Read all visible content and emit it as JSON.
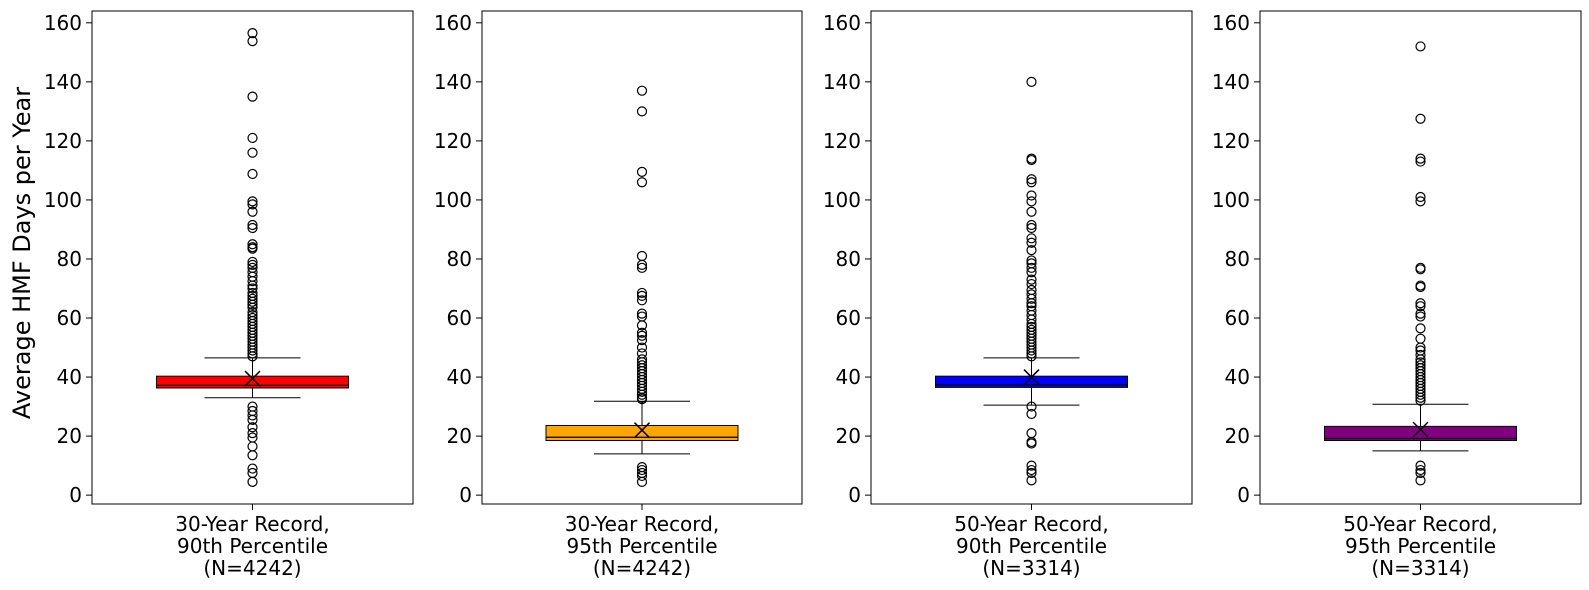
{
  "chart_data": {
    "type": "box",
    "ylabel": "Average HMF Days per Year",
    "ylim": [
      -3,
      164
    ],
    "yticks": [
      0,
      20,
      40,
      60,
      80,
      100,
      120,
      140,
      160
    ],
    "grid": false,
    "panels": [
      {
        "label_lines": [
          "30-Year Record,",
          "90th Percentile",
          "(N=4242)"
        ],
        "color": "#ff0000",
        "q1": 36.3,
        "median": 37.2,
        "q3": 40.3,
        "whisker_low": 33.0,
        "whisker_high": 46.5,
        "mean": 39.5,
        "outliers": [
          156.5,
          153.8,
          135.0,
          121.0,
          116.0,
          108.8,
          99.5,
          98.5,
          96.0,
          91.5,
          90.5,
          85.0,
          84.0,
          83.5,
          79.0,
          78.0,
          77.0,
          75.5,
          74.0,
          72.5,
          71.0,
          70.0,
          68.5,
          67.5,
          66.5,
          65.5,
          64.5,
          63.5,
          62.0,
          61.0,
          60.0,
          59.0,
          58.0,
          57.0,
          56.0,
          55.0,
          54.0,
          53.0,
          52.0,
          51.0,
          50.0,
          49.0,
          48.0,
          47.0,
          30.0,
          28.5,
          27.0,
          25.5,
          23.0,
          21.0,
          19.5,
          16.5,
          13.5,
          9.0,
          7.5,
          4.5
        ]
      },
      {
        "label_lines": [
          "30-Year Record,",
          "95th Percentile",
          "(N=4242)"
        ],
        "color": "#ffa500",
        "q1": 18.5,
        "median": 19.6,
        "q3": 23.6,
        "whisker_low": 14.0,
        "whisker_high": 31.8,
        "mean": 22.0,
        "outliers": [
          137.0,
          130.0,
          109.5,
          106.0,
          81.0,
          78.0,
          77.0,
          68.5,
          67.5,
          66.0,
          61.5,
          60.5,
          57.5,
          55.0,
          54.0,
          52.5,
          50.0,
          48.0,
          46.0,
          45.0,
          44.0,
          43.0,
          42.0,
          41.0,
          40.0,
          39.0,
          38.0,
          37.0,
          36.0,
          35.0,
          34.0,
          33.0,
          32.5,
          9.5,
          8.5,
          7.5,
          6.5,
          4.5
        ]
      },
      {
        "label_lines": [
          "50-Year Record,",
          "90th Percentile",
          "(N=3314)"
        ],
        "color": "#0000ff",
        "q1": 36.5,
        "median": 37.4,
        "q3": 40.3,
        "whisker_low": 30.5,
        "whisker_high": 46.5,
        "mean": 40.0,
        "outliers": [
          140.0,
          114.0,
          113.5,
          107.0,
          106.0,
          101.5,
          99.5,
          96.0,
          91.5,
          90.5,
          87.0,
          85.5,
          83.0,
          79.5,
          78.5,
          77.0,
          75.5,
          73.0,
          71.5,
          69.5,
          68.0,
          66.5,
          65.0,
          64.0,
          62.5,
          61.0,
          59.5,
          58.0,
          57.0,
          56.0,
          55.0,
          54.0,
          53.0,
          52.0,
          51.0,
          50.0,
          49.0,
          48.0,
          47.0,
          30.0,
          27.5,
          21.0,
          18.0,
          17.5,
          10.0,
          8.5,
          7.5,
          5.0
        ]
      },
      {
        "label_lines": [
          "50-Year Record,",
          "95th Percentile",
          "(N=3314)"
        ],
        "color": "#800080",
        "q1": 18.5,
        "median": 19.2,
        "q3": 23.3,
        "whisker_low": 15.0,
        "whisker_high": 30.8,
        "mean": 22.2,
        "outliers": [
          152.0,
          127.5,
          114.0,
          113.0,
          101.0,
          99.5,
          77.0,
          76.5,
          71.0,
          70.5,
          65.0,
          64.0,
          61.5,
          60.5,
          56.5,
          53.0,
          50.0,
          49.0,
          47.5,
          46.0,
          45.0,
          44.0,
          43.0,
          42.0,
          41.0,
          40.0,
          39.0,
          38.0,
          37.0,
          36.0,
          35.0,
          34.0,
          33.0,
          32.0,
          10.0,
          8.5,
          7.5,
          5.0
        ]
      }
    ]
  }
}
